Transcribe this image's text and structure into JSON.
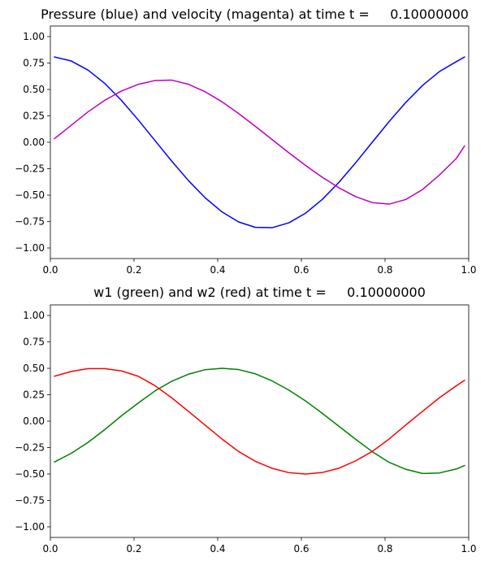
{
  "chart_data": [
    {
      "type": "line",
      "title": "Pressure (blue) and velocity (magenta) at time t =     0.10000000",
      "xlabel": "",
      "ylabel": "",
      "xlim": [
        0,
        1
      ],
      "ylim": [
        -1.1,
        1.1
      ],
      "xticks": [
        "0.0",
        "0.2",
        "0.4",
        "0.6",
        "0.8",
        "1.0"
      ],
      "yticks": [
        "1.00",
        "0.75",
        "0.50",
        "0.25",
        "0.00",
        "−0.25",
        "−0.50",
        "−0.75",
        "−1.00"
      ],
      "x": [
        0.01,
        0.05,
        0.09,
        0.13,
        0.17,
        0.21,
        0.25,
        0.29,
        0.33,
        0.37,
        0.41,
        0.45,
        0.49,
        0.53,
        0.57,
        0.61,
        0.65,
        0.69,
        0.73,
        0.77,
        0.81,
        0.85,
        0.89,
        0.93,
        0.97,
        0.99
      ],
      "series": [
        {
          "color": "#0000ff",
          "values": [
            0.807,
            0.769,
            0.683,
            0.557,
            0.396,
            0.212,
            0.017,
            -0.178,
            -0.362,
            -0.525,
            -0.658,
            -0.754,
            -0.805,
            -0.808,
            -0.762,
            -0.671,
            -0.541,
            -0.378,
            -0.193,
            0.003,
            0.197,
            0.379,
            0.539,
            0.669,
            0.762,
            0.807
          ]
        },
        {
          "color": "#bf00bf",
          "values": [
            0.035,
            0.161,
            0.288,
            0.397,
            0.485,
            0.548,
            0.584,
            0.588,
            0.549,
            0.478,
            0.384,
            0.272,
            0.151,
            0.026,
            -0.099,
            -0.219,
            -0.331,
            -0.431,
            -0.515,
            -0.571,
            -0.585,
            -0.541,
            -0.446,
            -0.31,
            -0.155,
            -0.035
          ]
        }
      ]
    },
    {
      "type": "line",
      "title": "w1 (green) and w2 (red) at time t =     0.10000000",
      "xlabel": "",
      "ylabel": "",
      "xlim": [
        0,
        1
      ],
      "ylim": [
        -1.1,
        1.1
      ],
      "xticks": [
        "0.0",
        "0.2",
        "0.4",
        "0.6",
        "0.8",
        "1.0"
      ],
      "yticks": [
        "1.00",
        "0.75",
        "0.50",
        "0.25",
        "0.00",
        "−0.25",
        "−0.50",
        "−0.75",
        "−1.00"
      ],
      "x": [
        0.01,
        0.05,
        0.09,
        0.13,
        0.17,
        0.21,
        0.25,
        0.29,
        0.33,
        0.37,
        0.41,
        0.45,
        0.49,
        0.53,
        0.57,
        0.61,
        0.65,
        0.69,
        0.73,
        0.77,
        0.81,
        0.85,
        0.89,
        0.93,
        0.97,
        0.99
      ],
      "series": [
        {
          "color": "#008000",
          "values": [
            -0.386,
            -0.304,
            -0.201,
            -0.08,
            0.051,
            0.171,
            0.286,
            0.377,
            0.444,
            0.487,
            0.5,
            0.488,
            0.448,
            0.381,
            0.294,
            0.191,
            0.074,
            -0.049,
            -0.172,
            -0.29,
            -0.39,
            -0.456,
            -0.495,
            -0.49,
            -0.453,
            -0.42
          ]
        },
        {
          "color": "#ff0000",
          "values": [
            0.425,
            0.47,
            0.497,
            0.497,
            0.475,
            0.425,
            0.336,
            0.221,
            0.093,
            -0.038,
            -0.168,
            -0.287,
            -0.38,
            -0.446,
            -0.487,
            -0.5,
            -0.486,
            -0.445,
            -0.375,
            -0.285,
            -0.168,
            -0.035,
            0.094,
            0.221,
            0.334,
            0.386
          ]
        }
      ]
    }
  ]
}
